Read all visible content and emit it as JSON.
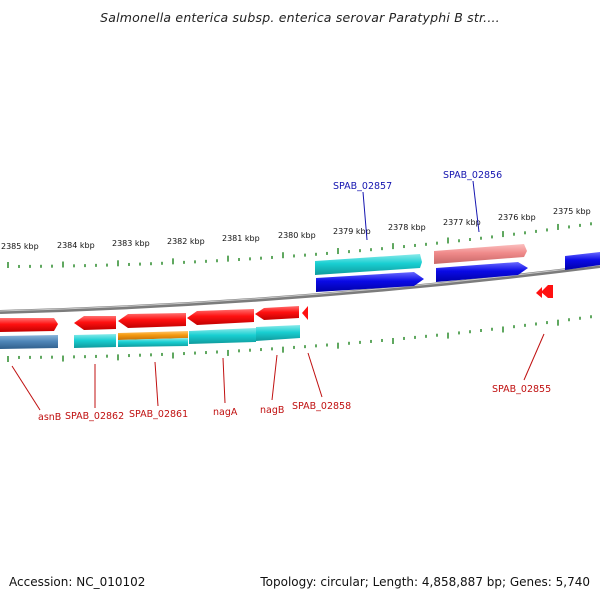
{
  "title": "Salmonella enterica subsp. enterica serovar Paratyphi B str....",
  "accession": "Accession: NC_010102",
  "topology": "Topology: circular; Length: 4,858,887 bp; Genes: 5,740",
  "scale_labels": [
    "2385 kbp",
    "2384 kbp",
    "2383 kbp",
    "2382 kbp",
    "2381 kbp",
    "2380 kbp",
    "2379 kbp",
    "2378 kbp",
    "2377 kbp",
    "2376 kbp",
    "2375 kbp"
  ],
  "top_gene_labels": [
    "SPAB_02857",
    "SPAB_02856"
  ],
  "bottom_gene_labels": [
    "asnB",
    "SPAB_02862",
    "SPAB_02861",
    "nagA",
    "nagB",
    "SPAB_02858",
    "SPAB_02855"
  ],
  "colors": {
    "red": "#ff1010",
    "blue": "#0a0ae6",
    "cyan": "#19cfd2",
    "salmon": "#f08a8a",
    "orange": "#f59a10",
    "steel": "#4f86b8",
    "tick": "#2a8a2a",
    "backbone": "#888888",
    "top_label": "#1515b0",
    "bottom_label": "#c01010"
  }
}
